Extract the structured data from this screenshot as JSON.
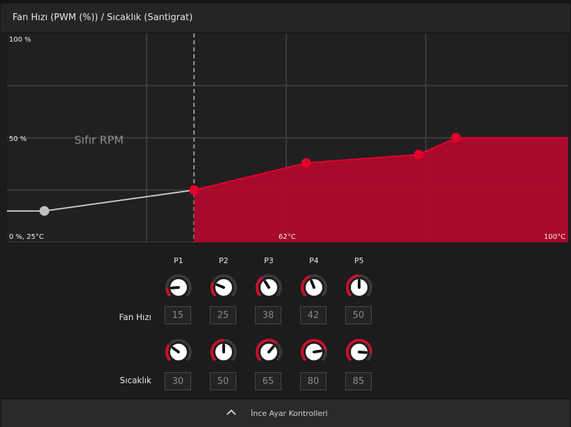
{
  "header": {
    "title": "Fan Hızı (PWM (%)) / Sıcaklık (Santigrat)"
  },
  "chart": {
    "zero_rpm_label": "Sıfır RPM",
    "y_top_label": "100 %",
    "y_mid_label": "50 %",
    "origin_label": "0 %, 25°C",
    "x_mid_label": "62°C",
    "x_max_label": "100°C",
    "accent_color": "#b0092c",
    "point_color": "#e3002b",
    "inactive_point_color": "#c0c0c0"
  },
  "chart_data": {
    "type": "area",
    "x": [
      30,
      50,
      65,
      80,
      85
    ],
    "values": [
      15,
      25,
      38,
      42,
      50
    ],
    "xlim": [
      25,
      100
    ],
    "ylim": [
      0,
      100
    ],
    "xlabel": "",
    "ylabel": "",
    "grid": true,
    "annotation": "Sıfır RPM",
    "zero_rpm_threshold": 50
  },
  "controls": {
    "columns": [
      "P1",
      "P2",
      "P3",
      "P4",
      "P5"
    ],
    "fan_row_label": "Fan Hızı",
    "temp_row_label": "Sıcaklık",
    "fan_values": [
      "15",
      "25",
      "38",
      "42",
      "50"
    ],
    "temp_values": [
      "30",
      "50",
      "65",
      "80",
      "85"
    ],
    "fan_levels": [
      15,
      25,
      38,
      42,
      50
    ],
    "temp_levels": [
      30,
      50,
      65,
      80,
      85
    ]
  },
  "footer": {
    "label": "İnce Ayar Kontrolleri",
    "icon": "chevron-up-icon"
  }
}
